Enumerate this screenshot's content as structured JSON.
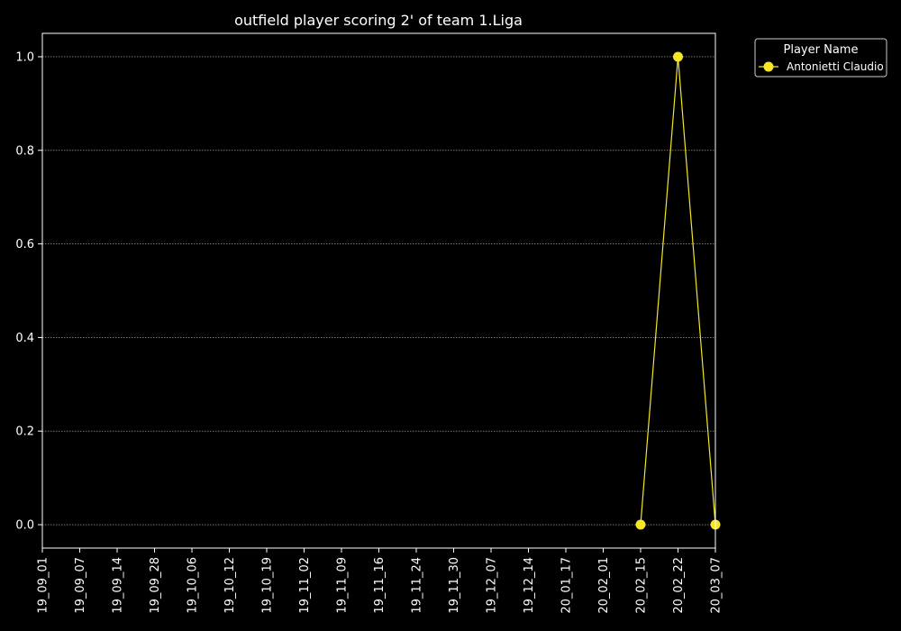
{
  "chart_data": {
    "type": "line",
    "title": "outfield player scoring 2' of team 1.Liga",
    "xlabel": "",
    "ylabel": "",
    "categories": [
      "19_09_01",
      "19_09_07",
      "19_09_14",
      "19_09_28",
      "19_10_06",
      "19_10_12",
      "19_10_19",
      "19_11_02",
      "19_11_09",
      "19_11_16",
      "19_11_24",
      "19_11_30",
      "19_12_07",
      "19_12_14",
      "20_01_17",
      "20_02_01",
      "20_02_15",
      "20_02_22",
      "20_03_07"
    ],
    "yticks": [
      "0.0",
      "0.2",
      "0.4",
      "0.6",
      "0.8",
      "1.0"
    ],
    "ylim": [
      -0.05,
      1.05
    ],
    "grid": true,
    "legend": {
      "title": "Player Name",
      "placement": "outside-top-right"
    },
    "series": [
      {
        "name": "Antonietti Claudio",
        "color": "#f5e62a",
        "points": [
          {
            "x": "20_02_15",
            "y": 0
          },
          {
            "x": "20_02_22",
            "y": 1
          },
          {
            "x": "20_03_07",
            "y": 0
          }
        ]
      }
    ]
  }
}
